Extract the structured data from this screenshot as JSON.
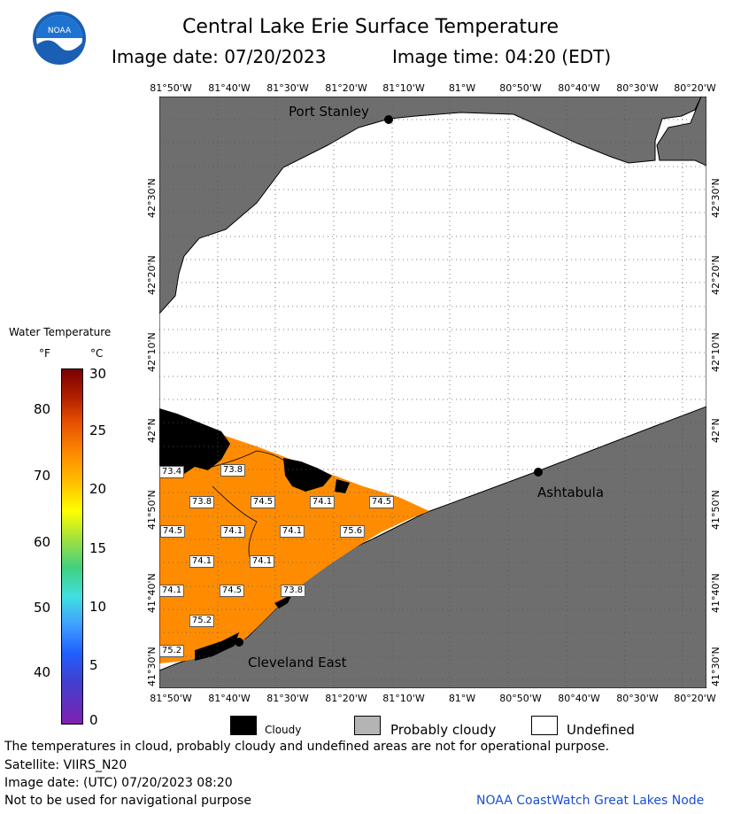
{
  "header": {
    "title": "Central Lake Erie Surface Temperature",
    "image_date": "Image date: 07/20/2023",
    "image_time": "Image time: 04:20 (EDT)"
  },
  "map": {
    "lon_labels": [
      "81°50'W",
      "81°40'W",
      "81°30'W",
      "81°20'W",
      "81°10'W",
      "81°W",
      "80°50'W",
      "80°40'W",
      "80°30'W",
      "80°20'W"
    ],
    "lat_labels": [
      "42°30'N",
      "42°20'N",
      "42°10'N",
      "42°N",
      "41°50'N",
      "41°40'N",
      "41°30'N"
    ],
    "places": {
      "port_stanley": "Port Stanley",
      "ashtabula": "Ashtabula",
      "cleveland_east": "Cleveland East"
    },
    "isotherm_labels": [
      "73.4",
      "73.8",
      "73.8",
      "74.5",
      "74.1",
      "74.5",
      "74.5",
      "74.1",
      "74.1",
      "75.6",
      "74.1",
      "74.1",
      "74.1",
      "74.5",
      "73.8",
      "75.2",
      "75.2"
    ],
    "colors": {
      "land": "#6e6e6e",
      "undefined": "#ffffff",
      "water_warm": "#ff8c00",
      "cloudy": "#000000"
    }
  },
  "legend": {
    "title": "Water Temperature",
    "unit_f": "°F",
    "unit_c": "°C",
    "f_ticks": [
      "80",
      "70",
      "60",
      "50",
      "40"
    ],
    "c_ticks": [
      "30",
      "25",
      "20",
      "15",
      "10",
      "5",
      "0"
    ]
  },
  "key": {
    "cloudy": "Cloudy",
    "probably_cloudy": "Probably cloudy",
    "undefined": "Undefined"
  },
  "footer": {
    "disclaimer": "The temperatures in cloud, probably cloudy and undefined areas are not for operational purpose.",
    "satellite": "Satellite: VIIRS_N20",
    "utc_date": "Image date: (UTC) 07/20/2023   08:20",
    "nav_warning": "Not to be used for navigational purpose",
    "credit": "NOAA CoastWatch Great Lakes Node"
  }
}
